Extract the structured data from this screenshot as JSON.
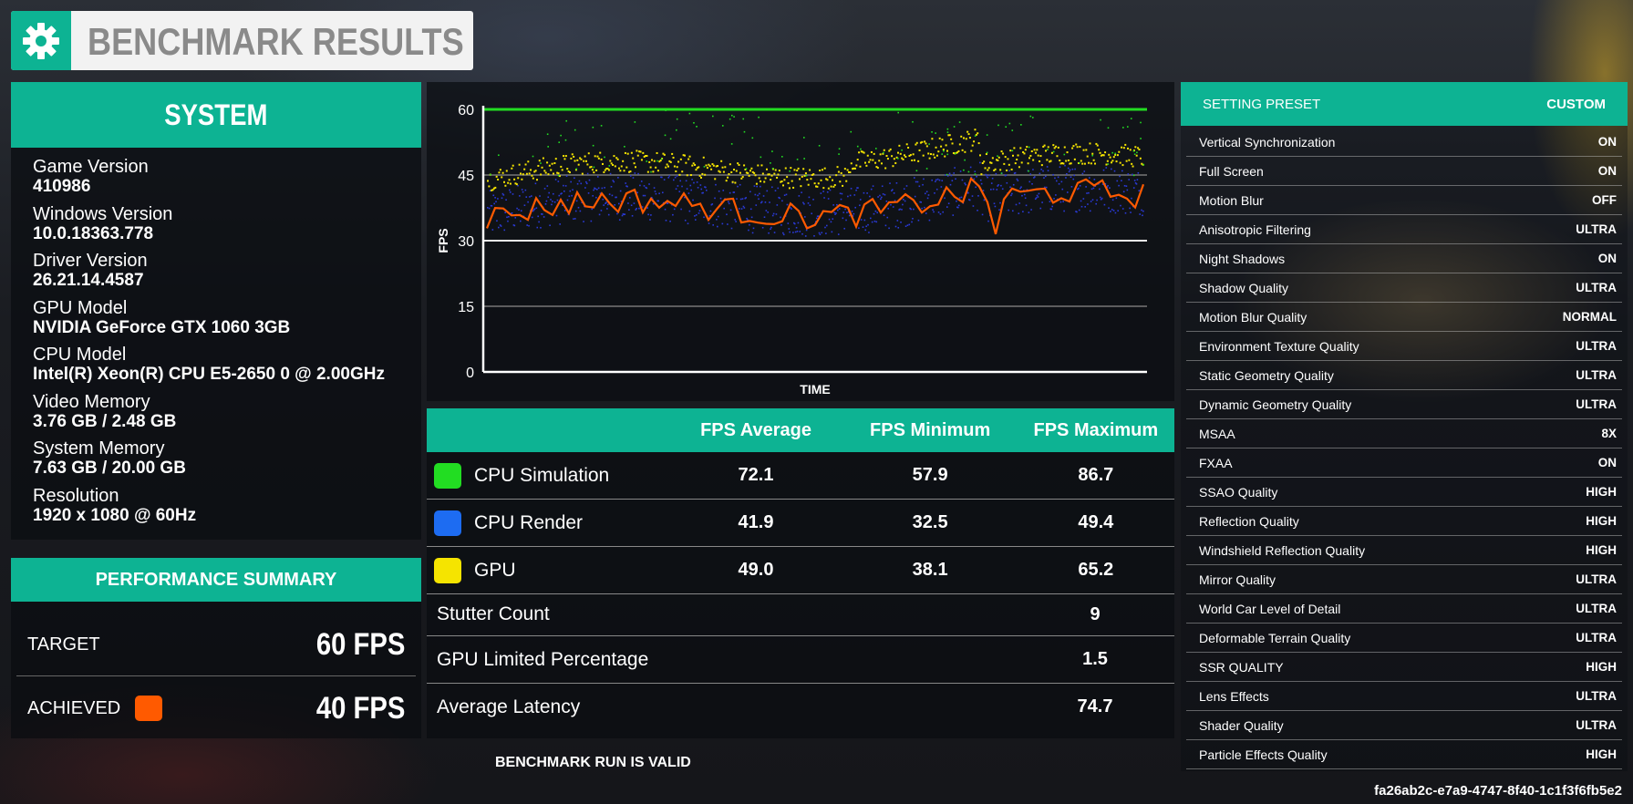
{
  "title": "BENCHMARK RESULTS",
  "icon": "gear-icon",
  "colors": {
    "accent": "#0db393",
    "cpu_sim": "#22dd22",
    "cpu_render": "#1d6cf2",
    "gpu": "#f5e400",
    "achieved": "#ff5a00"
  },
  "system": {
    "header": "SYSTEM",
    "items": [
      {
        "label": "Game Version",
        "value": "410986"
      },
      {
        "label": "Windows Version",
        "value": "10.0.18363.778"
      },
      {
        "label": "Driver Version",
        "value": "26.21.14.4587"
      },
      {
        "label": "GPU Model",
        "value": "NVIDIA GeForce GTX 1060 3GB"
      },
      {
        "label": "CPU Model",
        "value": "Intel(R) Xeon(R) CPU E5-2650 0 @ 2.00GHz"
      },
      {
        "label": "Video Memory",
        "value": "3.76 GB / 2.48 GB"
      },
      {
        "label": "System Memory",
        "value": "7.63 GB / 20.00 GB"
      },
      {
        "label": "Resolution",
        "value": "1920 x 1080 @ 60Hz"
      }
    ]
  },
  "performance": {
    "header": "PERFORMANCE SUMMARY",
    "target_label": "TARGET",
    "target_value": "60 FPS",
    "achieved_label": "ACHIEVED",
    "achieved_value": "40 FPS"
  },
  "chart_data": {
    "type": "scatter",
    "ylabel": "FPS",
    "xlabel": "TIME",
    "yticks": [
      "60",
      "45",
      "30",
      "15",
      "0"
    ],
    "ylim": [
      0,
      60
    ],
    "grid": true,
    "target_line": 60,
    "series": [
      {
        "name": "CPU Simulation",
        "approx_range": [
          40,
          60
        ]
      },
      {
        "name": "CPU Render",
        "approx_range": [
          30,
          46
        ]
      },
      {
        "name": "GPU",
        "approx_range": [
          40,
          57
        ]
      },
      {
        "name": "Average",
        "approx_range": [
          32,
          46
        ]
      }
    ]
  },
  "stats": {
    "headers": [
      "FPS Average",
      "FPS Minimum",
      "FPS Maximum"
    ],
    "rows": [
      {
        "name": "CPU Simulation",
        "avg": "72.1",
        "min": "57.9",
        "max": "86.7"
      },
      {
        "name": "CPU Render",
        "avg": "41.9",
        "min": "32.5",
        "max": "49.4"
      },
      {
        "name": "GPU",
        "avg": "49.0",
        "min": "38.1",
        "max": "65.2"
      }
    ],
    "extra": [
      {
        "label": "Stutter Count",
        "value": "9"
      },
      {
        "label": "GPU Limited Percentage",
        "value": "1.5"
      },
      {
        "label": "Average Latency",
        "value": "74.7"
      }
    ]
  },
  "valid_text": "BENCHMARK RUN IS VALID",
  "run_id": "fa26ab2c-e7a9-4747-8f40-1c1f3f6fb5e2",
  "settings": {
    "header_label": "SETTING PRESET",
    "header_value": "CUSTOM",
    "items": [
      {
        "label": "Vertical Synchronization",
        "value": "ON"
      },
      {
        "label": "Full Screen",
        "value": "ON"
      },
      {
        "label": "Motion Blur",
        "value": "OFF"
      },
      {
        "label": "Anisotropic Filtering",
        "value": "ULTRA"
      },
      {
        "label": "Night Shadows",
        "value": "ON"
      },
      {
        "label": "Shadow Quality",
        "value": "ULTRA"
      },
      {
        "label": "Motion Blur Quality",
        "value": "NORMAL"
      },
      {
        "label": "Environment Texture Quality",
        "value": "ULTRA"
      },
      {
        "label": "Static Geometry Quality",
        "value": "ULTRA"
      },
      {
        "label": "Dynamic Geometry Quality",
        "value": "ULTRA"
      },
      {
        "label": "MSAA",
        "value": "8X"
      },
      {
        "label": "FXAA",
        "value": "ON"
      },
      {
        "label": "SSAO Quality",
        "value": "HIGH"
      },
      {
        "label": "Reflection Quality",
        "value": "HIGH"
      },
      {
        "label": "Windshield Reflection Quality",
        "value": "HIGH"
      },
      {
        "label": "Mirror Quality",
        "value": "ULTRA"
      },
      {
        "label": "World Car Level of Detail",
        "value": "ULTRA"
      },
      {
        "label": "Deformable Terrain Quality",
        "value": "ULTRA"
      },
      {
        "label": "SSR QUALITY",
        "value": "HIGH"
      },
      {
        "label": "Lens Effects",
        "value": "ULTRA"
      },
      {
        "label": "Shader Quality",
        "value": "ULTRA"
      },
      {
        "label": "Particle Effects Quality",
        "value": "HIGH"
      }
    ]
  }
}
